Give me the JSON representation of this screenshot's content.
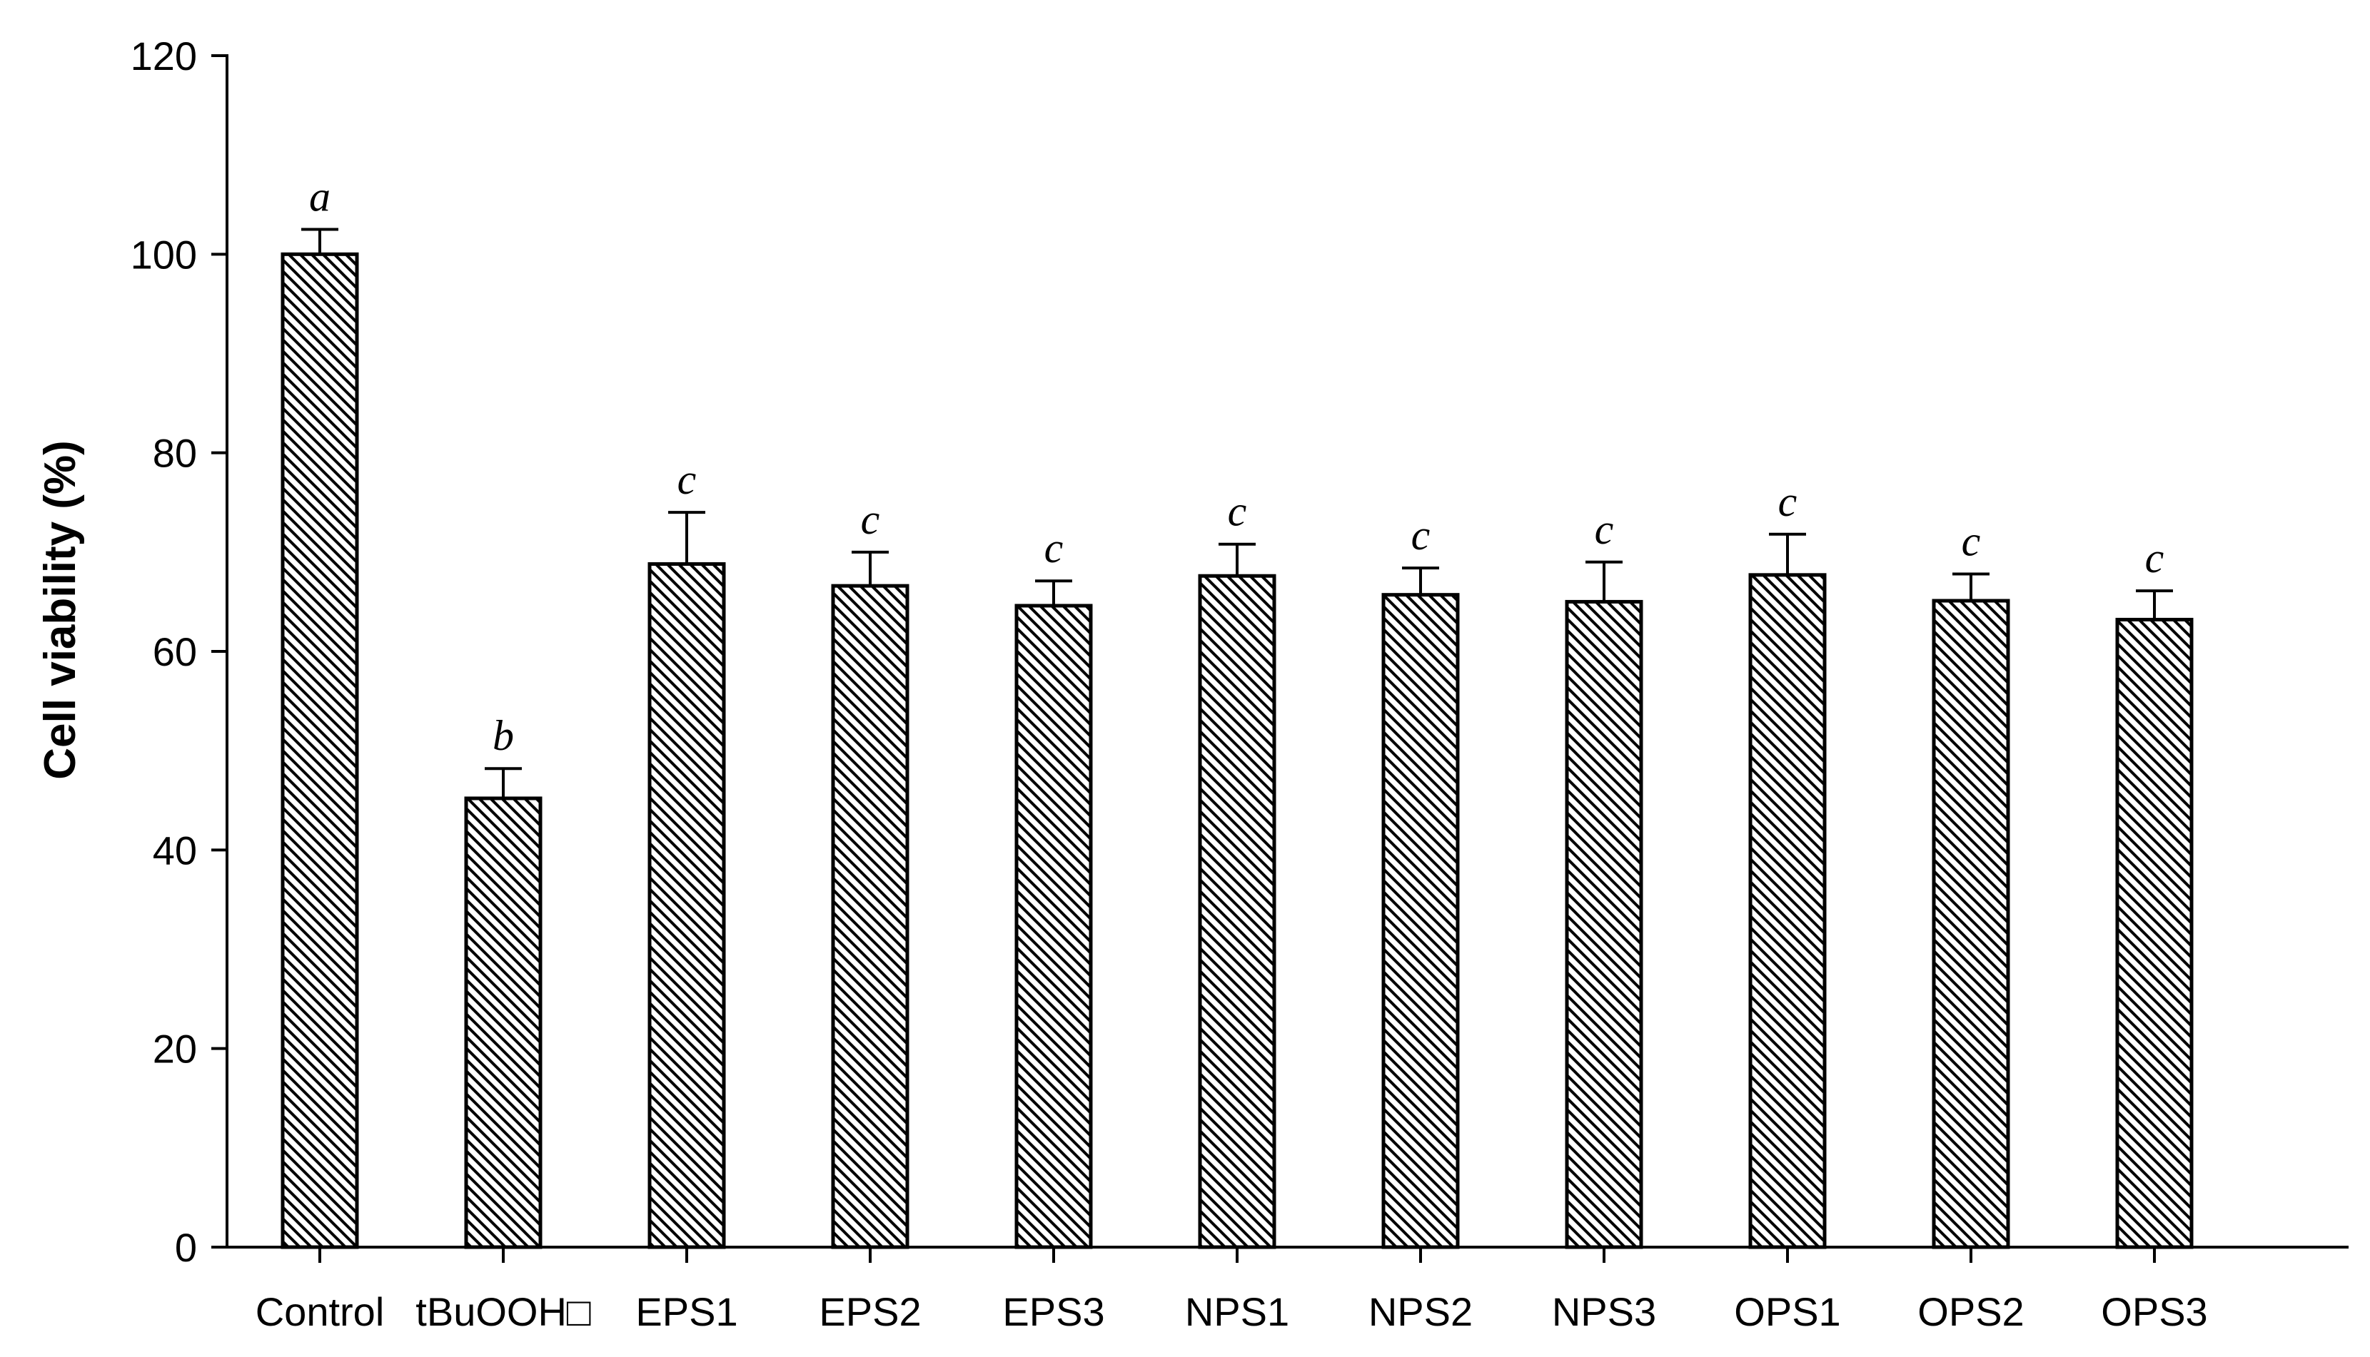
{
  "chart_data": {
    "type": "bar",
    "ylabel": "Cell viability (%)",
    "xlabel": "",
    "ylim": [
      0,
      120
    ],
    "yticks": [
      0,
      20,
      40,
      60,
      80,
      100,
      120
    ],
    "categories": [
      "Control",
      "tBuOOH□",
      "EPS1",
      "EPS2",
      "EPS3",
      "NPS1",
      "NPS2",
      "NPS3",
      "OPS1",
      "OPS2",
      "OPS3"
    ],
    "values": [
      100,
      45.2,
      68.8,
      66.6,
      64.6,
      67.6,
      65.7,
      65.0,
      67.7,
      65.1,
      63.2
    ],
    "errors": [
      2.5,
      3.0,
      5.2,
      3.4,
      2.5,
      3.2,
      2.7,
      4.0,
      4.1,
      2.7,
      2.9
    ],
    "significance": [
      "a",
      "b",
      "c",
      "c",
      "c",
      "c",
      "c",
      "c",
      "c",
      "c",
      "c"
    ],
    "bar_fill": "diagonal hatch",
    "grid": false,
    "legend": "none"
  }
}
